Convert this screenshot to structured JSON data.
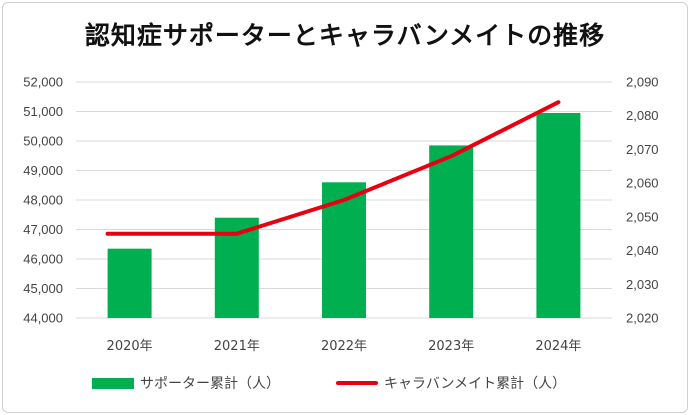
{
  "chart_data": {
    "title": "認知症サポーターとキャラバンメイトの推移",
    "categories": [
      "2020年",
      "2021年",
      "2022年",
      "2023年",
      "2024年"
    ],
    "y_left": {
      "min": 44000,
      "max": 52000,
      "step": 1000,
      "ticks": [
        "44,000",
        "45,000",
        "46,000",
        "47,000",
        "48,000",
        "49,000",
        "50,000",
        "51,000",
        "52,000"
      ]
    },
    "y_right": {
      "min": 2020,
      "max": 2090,
      "step": 10,
      "ticks": [
        "2,020",
        "2,030",
        "2,040",
        "2,050",
        "2,060",
        "2,070",
        "2,080",
        "2,090"
      ]
    },
    "series": [
      {
        "name": "サポーター累計（人）",
        "type": "bar",
        "axis": "left",
        "color": "#00b050",
        "values": [
          46350,
          47400,
          48600,
          49850,
          50950
        ]
      },
      {
        "name": "キャラバンメイト累計（人）",
        "type": "line",
        "axis": "right",
        "color": "#e60012",
        "values": [
          2045,
          2045,
          2055,
          2068,
          2084
        ]
      }
    ],
    "grid": true,
    "legend_position": "bottom"
  }
}
